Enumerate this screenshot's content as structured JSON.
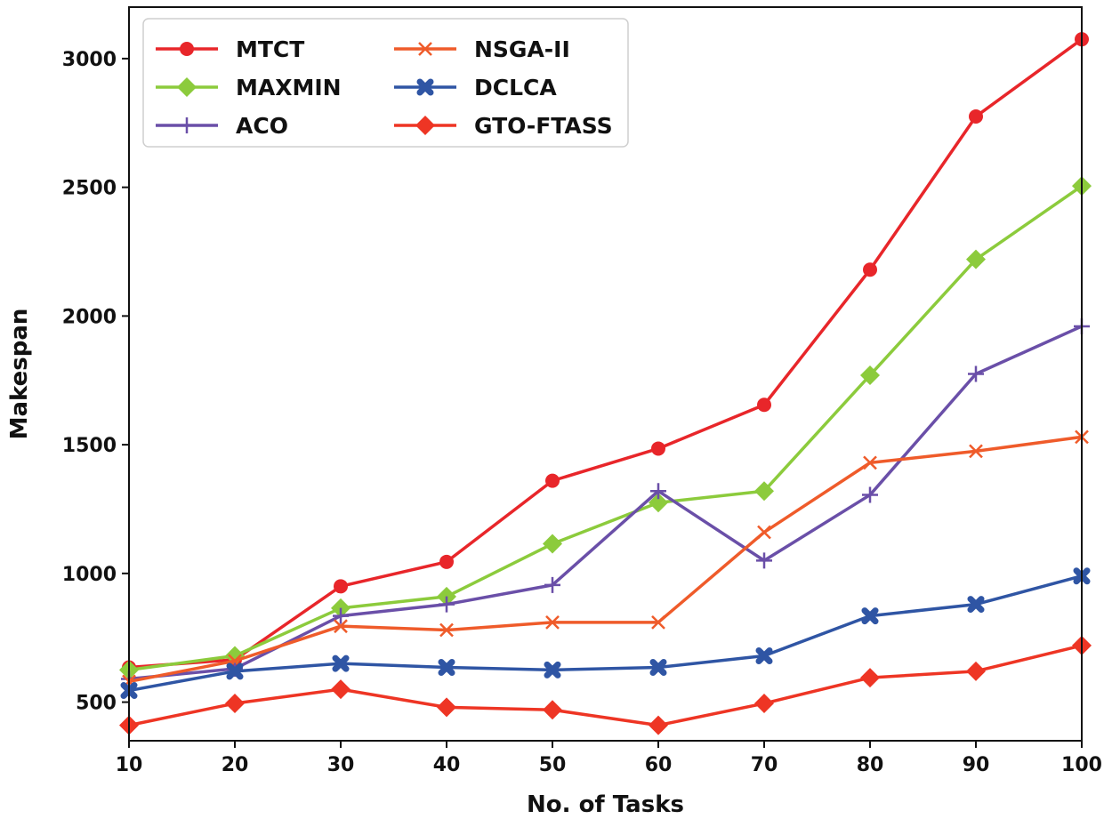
{
  "chart_data": {
    "type": "line",
    "title": "",
    "xlabel": "No. of Tasks",
    "ylabel": "Makespan",
    "x": [
      10,
      20,
      30,
      40,
      50,
      60,
      70,
      80,
      90,
      100
    ],
    "xlim": [
      10,
      100
    ],
    "ylim": [
      350,
      3200
    ],
    "xticks": [
      10,
      20,
      30,
      40,
      50,
      60,
      70,
      80,
      90,
      100
    ],
    "yticks": [
      500,
      1000,
      1500,
      2000,
      2500,
      3000
    ],
    "grid": false,
    "legend_position": "top-left",
    "legend_columns": 2,
    "series": [
      {
        "name": "MTCT",
        "color": "#e8262a",
        "marker": "circle",
        "values": [
          635,
          665,
          950,
          1045,
          1360,
          1485,
          1655,
          2180,
          2775,
          3075
        ]
      },
      {
        "name": "MAXMIN",
        "color": "#8ccb3c",
        "marker": "diamond",
        "values": [
          625,
          680,
          865,
          910,
          1115,
          1275,
          1320,
          1770,
          2220,
          2505
        ]
      },
      {
        "name": "ACO",
        "color": "#6a4fa8",
        "marker": "plus",
        "values": [
          590,
          630,
          835,
          880,
          955,
          1320,
          1050,
          1305,
          1775,
          1960
        ]
      },
      {
        "name": "NSGA-II",
        "color": "#ef5b2a",
        "marker": "x",
        "values": [
          580,
          660,
          795,
          780,
          810,
          810,
          1160,
          1430,
          1475,
          1530
        ]
      },
      {
        "name": "DCLCA",
        "color": "#2f55a4",
        "marker": "filled-x",
        "values": [
          545,
          620,
          650,
          635,
          625,
          635,
          680,
          835,
          880,
          990
        ]
      },
      {
        "name": "GTO-FTASS",
        "color": "#ee3524",
        "marker": "diamond",
        "values": [
          410,
          495,
          550,
          480,
          470,
          410,
          495,
          595,
          620,
          720
        ]
      }
    ]
  }
}
